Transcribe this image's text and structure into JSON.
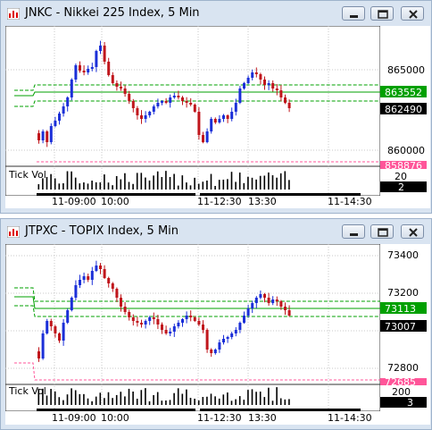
{
  "windows": [
    {
      "title": "JNKC - Nikkei 225 Index, 5 Min",
      "price_axis": [
        "865000",
        "860000"
      ],
      "price_tags": {
        "upper": "863552",
        "last": "862490",
        "lower": "858876"
      },
      "indicator_label": "Tick Vol",
      "indicator_axis": "20",
      "indicator_value": "2",
      "time_labels": [
        "11-09:00",
        "10:00",
        "11-12:30",
        "13:30",
        "11-14:30"
      ],
      "colors": {
        "up": "#1b2fd8",
        "down": "#c0161c",
        "upper_tag": "#00a000",
        "lower_tag": "#ff5599"
      }
    },
    {
      "title": "JTPXC - TOPIX Index, 5 Min",
      "price_axis": [
        "73400",
        "73200",
        "72800"
      ],
      "price_tags": {
        "upper": "73113",
        "last": "73007",
        "lower": "72685"
      },
      "indicator_label": "Tick Vol",
      "indicator_axis": "200",
      "indicator_value": "3",
      "time_labels": [
        "11-09:00",
        "10:00",
        "11-12:30",
        "13:30",
        "11-14:30"
      ],
      "colors": {
        "up": "#1b2fd8",
        "down": "#c0161c",
        "upper_tag": "#00a000",
        "lower_tag": "#ff5599"
      }
    }
  ]
}
